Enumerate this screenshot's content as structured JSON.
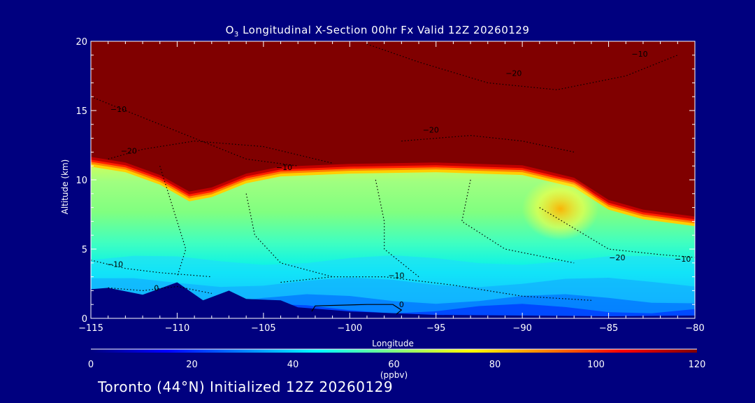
{
  "title": {
    "prefix": "O",
    "subscript": "3",
    "rest": " Longitudinal X-Section 00hr  Fx Valid 12Z 20260129"
  },
  "footer": "Toronto (44°N) Initialized 12Z 20260129",
  "chart_data": {
    "type": "heatmap",
    "xlabel": "Longitude",
    "ylabel": "Altitude (km)",
    "xlim": [
      -115,
      -80
    ],
    "ylim": [
      0,
      20
    ],
    "xticks": [
      "−115",
      "−110",
      "−105",
      "−100",
      "−95",
      "−90",
      "−85",
      "−80"
    ],
    "xtick_values": [
      -115,
      -110,
      -105,
      -100,
      -95,
      -90,
      -85,
      -80
    ],
    "yticks": [
      "0",
      "5",
      "10",
      "15",
      "20"
    ],
    "ytick_values": [
      0,
      5,
      10,
      15,
      20
    ],
    "colorbar": {
      "label": "(ppbv)",
      "range": [
        0,
        120
      ],
      "ticks": [
        "0",
        "20",
        "40",
        "60",
        "80",
        "100",
        "120"
      ],
      "tick_values": [
        0,
        20,
        40,
        60,
        80,
        100,
        120
      ],
      "colors": [
        "#00007f",
        "#0000ff",
        "#0080ff",
        "#00ffff",
        "#80ff80",
        "#ffff00",
        "#ff8000",
        "#ff0000",
        "#800000"
      ]
    },
    "tropopause_height_km": [
      [
        -115,
        11.1
      ],
      [
        -113,
        10.7
      ],
      [
        -111,
        9.8
      ],
      [
        -109.3,
        8.6
      ],
      [
        -108,
        8.9
      ],
      [
        -106,
        9.9
      ],
      [
        -104,
        10.4
      ],
      [
        -100,
        10.6
      ],
      [
        -95,
        10.7
      ],
      [
        -90,
        10.5
      ],
      [
        -87,
        9.6
      ],
      [
        -85,
        8.0
      ],
      [
        -83,
        7.3
      ],
      [
        -80,
        6.8
      ]
    ],
    "ozone_field_ppbv": {
      "surface": 20,
      "boundary_layer": 35,
      "lower_troposphere": 48,
      "mid_troposphere": 62,
      "upper_troposphere": 68,
      "tropopause_fold_near_-88": 85,
      "stratosphere": 120
    },
    "terrain_km": [
      [
        -115,
        2.1
      ],
      [
        -114,
        2.2
      ],
      [
        -112,
        1.7
      ],
      [
        -110,
        2.6
      ],
      [
        -108.5,
        1.3
      ],
      [
        -107,
        2.0
      ],
      [
        -106,
        1.4
      ],
      [
        -104,
        1.3
      ],
      [
        -103,
        0.8
      ],
      [
        -101,
        0.6
      ],
      [
        -100,
        0.5
      ],
      [
        -95,
        0.25
      ],
      [
        -90,
        0.2
      ],
      [
        -85,
        0.15
      ],
      [
        -80,
        0.2
      ]
    ],
    "contour_labels": [
      {
        "text": "−10",
        "lon": -83.2,
        "alt": 18.9
      },
      {
        "text": "−20",
        "lon": -90.5,
        "alt": 17.5
      },
      {
        "text": "−10",
        "lon": -113.4,
        "alt": 14.9
      },
      {
        "text": "−20",
        "lon": -95.3,
        "alt": 13.4
      },
      {
        "text": "−20",
        "lon": -112.8,
        "alt": 11.9
      },
      {
        "text": "−10",
        "lon": -103.8,
        "alt": 10.7
      },
      {
        "text": "−20",
        "lon": -84.5,
        "alt": 4.2
      },
      {
        "text": "−10",
        "lon": -80.7,
        "alt": 4.1
      },
      {
        "text": "−10",
        "lon": -113.6,
        "alt": 3.7
      },
      {
        "text": "−10",
        "lon": -97.3,
        "alt": 2.9
      },
      {
        "text": "0",
        "lon": -111.2,
        "alt": 2.0
      },
      {
        "text": "0",
        "lon": -97.0,
        "alt": 0.8
      }
    ]
  }
}
